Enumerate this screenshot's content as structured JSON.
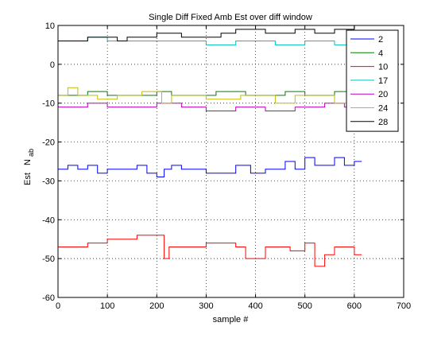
{
  "chart_data": {
    "type": "line",
    "title": "Single Diff Fixed Amb Est over diff window",
    "xlabel": "sample #",
    "ylabel_main": "Est",
    "ylabel_sub": "ab",
    "ylabel_N": "N",
    "xlim": [
      0,
      700
    ],
    "ylim": [
      -60,
      10
    ],
    "xticks": [
      0,
      100,
      200,
      300,
      400,
      500,
      600,
      700
    ],
    "yticks": [
      -60,
      -50,
      -40,
      -30,
      -20,
      -10,
      0,
      10
    ],
    "grid": true,
    "legend_position": "top-right",
    "series": [
      {
        "name": "2",
        "color": "#0000ff",
        "points": [
          [
            0,
            -27
          ],
          [
            20,
            -27
          ],
          [
            20,
            -26
          ],
          [
            40,
            -26
          ],
          [
            40,
            -27
          ],
          [
            60,
            -27
          ],
          [
            60,
            -26
          ],
          [
            80,
            -26
          ],
          [
            80,
            -28
          ],
          [
            100,
            -28
          ],
          [
            100,
            -27
          ],
          [
            160,
            -27
          ],
          [
            160,
            -26
          ],
          [
            180,
            -26
          ],
          [
            180,
            -28
          ],
          [
            200,
            -28
          ],
          [
            200,
            -29
          ],
          [
            215,
            -29
          ],
          [
            215,
            -27
          ],
          [
            230,
            -27
          ],
          [
            230,
            -26
          ],
          [
            250,
            -26
          ],
          [
            250,
            -27
          ],
          [
            300,
            -27
          ],
          [
            300,
            -28
          ],
          [
            360,
            -28
          ],
          [
            360,
            -26
          ],
          [
            390,
            -26
          ],
          [
            390,
            -28
          ],
          [
            420,
            -28
          ],
          [
            420,
            -27
          ],
          [
            460,
            -27
          ],
          [
            460,
            -25
          ],
          [
            480,
            -25
          ],
          [
            480,
            -27
          ],
          [
            500,
            -27
          ],
          [
            500,
            -24
          ],
          [
            520,
            -24
          ],
          [
            520,
            -26
          ],
          [
            560,
            -26
          ],
          [
            560,
            -24
          ],
          [
            580,
            -24
          ],
          [
            580,
            -26
          ],
          [
            600,
            -26
          ],
          [
            600,
            -25
          ],
          [
            615,
            -25
          ]
        ]
      },
      {
        "name": "4",
        "color": "#008000",
        "points": [
          [
            0,
            -8
          ],
          [
            60,
            -8
          ],
          [
            60,
            -7
          ],
          [
            100,
            -7
          ],
          [
            100,
            -8
          ],
          [
            200,
            -8
          ],
          [
            200,
            -7
          ],
          [
            230,
            -7
          ],
          [
            230,
            -8
          ],
          [
            320,
            -8
          ],
          [
            320,
            -7
          ],
          [
            380,
            -7
          ],
          [
            380,
            -8
          ],
          [
            460,
            -8
          ],
          [
            460,
            -7
          ],
          [
            500,
            -7
          ],
          [
            500,
            -8
          ],
          [
            560,
            -8
          ],
          [
            560,
            -7
          ],
          [
            590,
            -7
          ],
          [
            590,
            -8
          ],
          [
            615,
            -8
          ]
        ]
      },
      {
        "name": "10",
        "color": "#ff0000",
        "points": [
          [
            0,
            -47
          ],
          [
            60,
            -47
          ],
          [
            60,
            -46
          ],
          [
            100,
            -46
          ],
          [
            100,
            -45
          ],
          [
            160,
            -45
          ],
          [
            160,
            -44
          ],
          [
            215,
            -44
          ],
          [
            215,
            -50
          ],
          [
            225,
            -50
          ],
          [
            225,
            -47
          ],
          [
            300,
            -47
          ],
          [
            300,
            -46
          ],
          [
            360,
            -46
          ],
          [
            360,
            -47
          ],
          [
            380,
            -47
          ],
          [
            380,
            -50
          ],
          [
            420,
            -50
          ],
          [
            420,
            -47
          ],
          [
            470,
            -47
          ],
          [
            470,
            -48
          ],
          [
            500,
            -48
          ],
          [
            500,
            -46
          ],
          [
            520,
            -46
          ],
          [
            520,
            -52
          ],
          [
            540,
            -52
          ],
          [
            540,
            -49
          ],
          [
            560,
            -49
          ],
          [
            560,
            -47
          ],
          [
            600,
            -47
          ],
          [
            600,
            -49
          ],
          [
            615,
            -49
          ]
        ]
      },
      {
        "name": "17",
        "color": "#00bfbf",
        "points": [
          [
            0,
            6
          ],
          [
            60,
            6
          ],
          [
            60,
            7
          ],
          [
            100,
            7
          ],
          [
            100,
            6
          ],
          [
            300,
            6
          ],
          [
            300,
            5
          ],
          [
            360,
            5
          ],
          [
            360,
            6
          ],
          [
            440,
            6
          ],
          [
            440,
            5
          ],
          [
            500,
            5
          ],
          [
            500,
            6
          ],
          [
            560,
            6
          ],
          [
            560,
            5
          ],
          [
            615,
            5
          ]
        ]
      },
      {
        "name": "20",
        "color": "#bf00bf",
        "points": [
          [
            0,
            -11
          ],
          [
            60,
            -11
          ],
          [
            60,
            -10
          ],
          [
            100,
            -10
          ],
          [
            100,
            -11
          ],
          [
            200,
            -11
          ],
          [
            200,
            -10
          ],
          [
            250,
            -10
          ],
          [
            250,
            -11
          ],
          [
            300,
            -11
          ],
          [
            300,
            -12
          ],
          [
            360,
            -12
          ],
          [
            360,
            -11
          ],
          [
            420,
            -11
          ],
          [
            420,
            -12
          ],
          [
            480,
            -12
          ],
          [
            480,
            -11
          ],
          [
            540,
            -11
          ],
          [
            540,
            -10
          ],
          [
            580,
            -10
          ],
          [
            580,
            -11
          ],
          [
            615,
            -11
          ]
        ]
      },
      {
        "name": "24",
        "color": "#bfbf00",
        "points": [
          [
            0,
            -8
          ],
          [
            20,
            -8
          ],
          [
            20,
            -6
          ],
          [
            40,
            -6
          ],
          [
            40,
            -8
          ],
          [
            80,
            -8
          ],
          [
            80,
            -9
          ],
          [
            120,
            -9
          ],
          [
            120,
            -8
          ],
          [
            170,
            -8
          ],
          [
            170,
            -7
          ],
          [
            210,
            -7
          ],
          [
            210,
            -10
          ],
          [
            230,
            -10
          ],
          [
            230,
            -8
          ],
          [
            300,
            -8
          ],
          [
            300,
            -9
          ],
          [
            370,
            -9
          ],
          [
            370,
            -8
          ],
          [
            440,
            -8
          ],
          [
            440,
            -10
          ],
          [
            480,
            -10
          ],
          [
            480,
            -8
          ],
          [
            560,
            -8
          ],
          [
            560,
            -10
          ],
          [
            590,
            -10
          ],
          [
            590,
            -8
          ],
          [
            615,
            -8
          ]
        ]
      },
      {
        "name": "28",
        "color": "#000000",
        "points": [
          [
            0,
            6
          ],
          [
            60,
            6
          ],
          [
            60,
            7
          ],
          [
            120,
            7
          ],
          [
            120,
            6
          ],
          [
            140,
            6
          ],
          [
            140,
            7
          ],
          [
            200,
            7
          ],
          [
            200,
            8
          ],
          [
            250,
            8
          ],
          [
            250,
            7
          ],
          [
            330,
            7
          ],
          [
            330,
            8
          ],
          [
            360,
            8
          ],
          [
            360,
            9
          ],
          [
            420,
            9
          ],
          [
            420,
            8
          ],
          [
            480,
            8
          ],
          [
            480,
            9
          ],
          [
            520,
            9
          ],
          [
            520,
            8
          ],
          [
            560,
            8
          ],
          [
            560,
            9
          ],
          [
            600,
            9
          ],
          [
            600,
            10
          ],
          [
            615,
            10
          ]
        ]
      }
    ]
  }
}
